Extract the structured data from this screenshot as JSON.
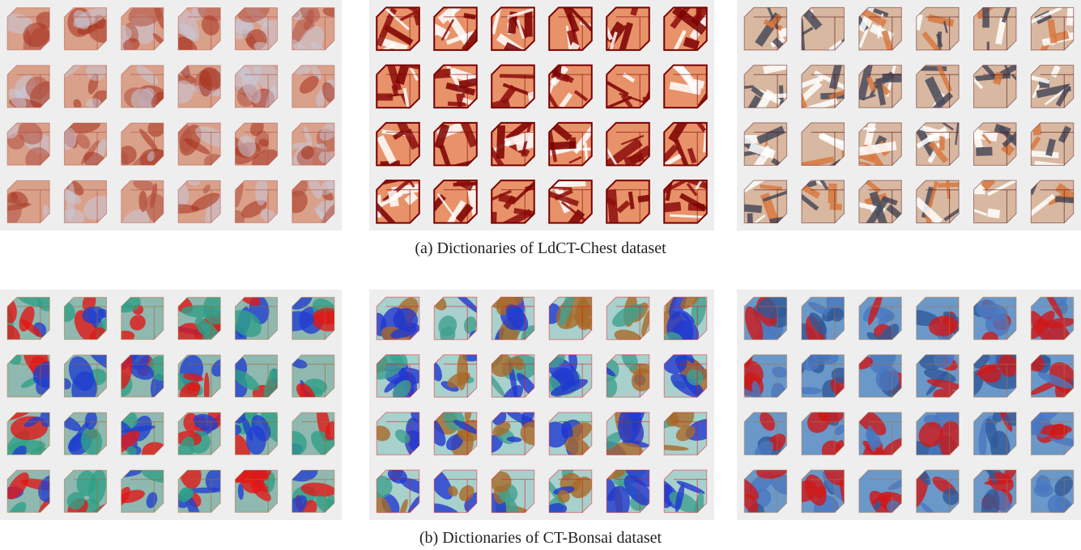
{
  "figure": {
    "rows": [
      {
        "caption": "(a) Dictionaries of LdCT-Chest dataset",
        "panels": [
          {
            "style": "soft-red",
            "colors": {
              "face": "#d9a08a",
              "dark": "#a5301c",
              "light": "#c8c8d8",
              "edge": "#b05040"
            }
          },
          {
            "style": "outlined-red",
            "colors": {
              "face": "#e8926a",
              "dark": "#8c0d0a",
              "light": "#ffffff",
              "edge": "#7a0000"
            }
          },
          {
            "style": "striped-gray",
            "colors": {
              "face": "#d8b8a0",
              "dark": "#4a4a5a",
              "light": "#ffffff",
              "edge": "#5a1010",
              "accent": "#d87840"
            }
          }
        ]
      },
      {
        "caption": "(b) Dictionaries of CT-Bonsai dataset",
        "panels": [
          {
            "style": "blobs",
            "colors": {
              "face": "#8fb8b0",
              "dark": "#e01818",
              "light": "#2040d0",
              "edge": "#a06830",
              "accent": "#30a088"
            }
          },
          {
            "style": "blobs",
            "colors": {
              "face": "#a8d0cc",
              "dark": "#a86a28",
              "light": "#2038d0",
              "edge": "#e01820",
              "accent": "#40a090"
            }
          },
          {
            "style": "blobs",
            "colors": {
              "face": "#6a98c8",
              "dark": "#d01818",
              "light": "#4878c0",
              "edge": "#b07040",
              "accent": "#305a9a"
            }
          }
        ]
      }
    ],
    "grid": {
      "rows": 4,
      "cols": 6
    }
  }
}
